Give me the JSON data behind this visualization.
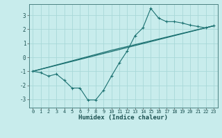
{
  "xlabel": "Humidex (Indice chaleur)",
  "background_color": "#c8ecec",
  "grid_color": "#a8d8d8",
  "line_color": "#1a7070",
  "xlim": [
    -0.5,
    23.5
  ],
  "ylim": [
    -3.6,
    3.8
  ],
  "xticks": [
    0,
    1,
    2,
    3,
    4,
    5,
    6,
    7,
    8,
    9,
    10,
    11,
    12,
    13,
    14,
    15,
    16,
    17,
    18,
    19,
    20,
    21,
    22,
    23
  ],
  "yticks": [
    -3,
    -2,
    -1,
    0,
    1,
    2,
    3
  ],
  "zigzag_x": [
    0,
    1,
    2,
    3,
    4,
    5,
    6,
    7,
    8,
    9,
    10,
    11,
    12,
    13,
    14,
    15,
    16,
    17,
    18,
    19,
    20,
    21,
    22,
    23
  ],
  "zigzag_y": [
    -1.0,
    -1.1,
    -1.35,
    -1.2,
    -1.65,
    -2.2,
    -2.2,
    -3.05,
    -3.05,
    -2.35,
    -1.35,
    -0.4,
    0.45,
    1.55,
    2.1,
    3.5,
    2.8,
    2.55,
    2.55,
    2.45,
    2.3,
    2.2,
    2.1,
    2.25
  ],
  "trend1_x": [
    0,
    23
  ],
  "trend1_y": [
    -1.0,
    2.25
  ],
  "trend2_x": [
    0,
    10,
    23
  ],
  "trend2_y": [
    -1.0,
    0.5,
    2.25
  ]
}
